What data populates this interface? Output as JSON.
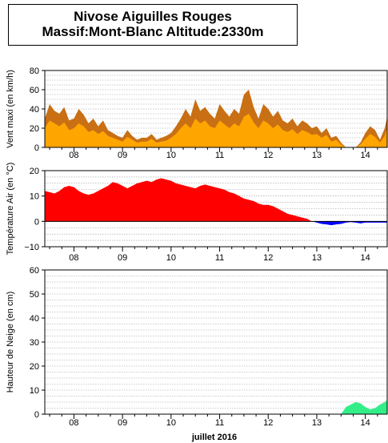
{
  "header": {
    "title_line1": "Nivose Aiguilles Rouges",
    "title_line2": "Massif:Mont-Blanc Altitude:2330m"
  },
  "xaxis": {
    "label": "juillet 2016",
    "day_ticks": [
      "08",
      "09",
      "10",
      "11",
      "12",
      "13",
      "14"
    ],
    "day_positions": [
      8,
      9,
      10,
      11,
      12,
      13,
      14
    ],
    "range": [
      7.4,
      14.45
    ]
  },
  "chart_data": [
    {
      "type": "area",
      "ylabel": "Vent maxi (en km/h)",
      "ylim": [
        0,
        80
      ],
      "yticks": [
        0,
        20,
        40,
        60,
        80
      ],
      "colors": {
        "gust": "#c96f14",
        "mean": "#ffa500"
      },
      "series": [
        {
          "x": [
            7.4,
            7.5,
            7.6,
            7.7,
            7.8,
            7.9,
            8.0,
            8.1,
            8.2,
            8.3,
            8.4,
            8.5,
            8.6,
            8.7,
            8.8,
            8.9,
            9.0,
            9.1,
            9.2,
            9.3,
            9.4,
            9.5,
            9.6,
            9.7,
            9.8,
            9.9,
            10.0,
            10.1,
            10.2,
            10.3,
            10.4,
            10.5,
            10.6,
            10.7,
            10.8,
            10.9,
            11.0,
            11.1,
            11.2,
            11.3,
            11.4,
            11.5,
            11.6,
            11.7,
            11.8,
            11.9,
            12.0,
            12.1,
            12.2,
            12.3,
            12.4,
            12.5,
            12.6,
            12.7,
            12.8,
            12.9,
            13.0,
            13.1,
            13.2,
            13.3,
            13.4,
            13.5,
            13.6,
            13.7,
            13.8,
            13.9,
            14.0,
            14.1,
            14.2,
            14.3,
            14.4,
            14.45
          ],
          "values": [
            30,
            45,
            38,
            35,
            42,
            28,
            30,
            40,
            34,
            25,
            30,
            22,
            28,
            18,
            15,
            12,
            10,
            18,
            12,
            8,
            10,
            10,
            14,
            8,
            10,
            12,
            15,
            22,
            30,
            40,
            32,
            50,
            38,
            42,
            35,
            30,
            45,
            38,
            32,
            40,
            35,
            55,
            60,
            42,
            30,
            45,
            40,
            32,
            38,
            28,
            25,
            30,
            22,
            28,
            25,
            20,
            22,
            15,
            20,
            10,
            12,
            5,
            0,
            0,
            0,
            5,
            15,
            22,
            18,
            8,
            20,
            32
          ]
        },
        {
          "x": [
            7.4,
            7.5,
            7.6,
            7.7,
            7.8,
            7.9,
            8.0,
            8.1,
            8.2,
            8.3,
            8.4,
            8.5,
            8.6,
            8.7,
            8.8,
            8.9,
            9.0,
            9.1,
            9.2,
            9.3,
            9.4,
            9.5,
            9.6,
            9.7,
            9.8,
            9.9,
            10.0,
            10.1,
            10.2,
            10.3,
            10.4,
            10.5,
            10.6,
            10.7,
            10.8,
            10.9,
            11.0,
            11.1,
            11.2,
            11.3,
            11.4,
            11.5,
            11.6,
            11.7,
            11.8,
            11.9,
            12.0,
            12.1,
            12.2,
            12.3,
            12.4,
            12.5,
            12.6,
            12.7,
            12.8,
            12.9,
            13.0,
            13.1,
            13.2,
            13.3,
            13.4,
            13.5,
            13.6,
            13.7,
            13.8,
            13.9,
            14.0,
            14.1,
            14.2,
            14.3,
            14.4,
            14.45
          ],
          "values": [
            20,
            28,
            25,
            22,
            26,
            18,
            20,
            25,
            22,
            16,
            18,
            14,
            17,
            12,
            10,
            8,
            6,
            11,
            8,
            5,
            6,
            6,
            9,
            5,
            6,
            7,
            10,
            14,
            20,
            25,
            20,
            30,
            25,
            28,
            22,
            20,
            28,
            24,
            20,
            25,
            22,
            32,
            35,
            26,
            20,
            28,
            25,
            20,
            24,
            18,
            16,
            19,
            14,
            18,
            16,
            13,
            14,
            10,
            13,
            6,
            8,
            3,
            0,
            0,
            0,
            3,
            9,
            14,
            11,
            5,
            12,
            20
          ]
        }
      ]
    },
    {
      "type": "area",
      "ylabel": "Température Air (en °C)",
      "ylim": [
        -10,
        20
      ],
      "yticks": [
        -10,
        0,
        10,
        20
      ],
      "colors": {
        "positive": "#ff0000",
        "negative": "#0000ff"
      },
      "series": [
        {
          "x": [
            7.4,
            7.5,
            7.6,
            7.7,
            7.8,
            7.9,
            8.0,
            8.1,
            8.2,
            8.3,
            8.4,
            8.5,
            8.6,
            8.7,
            8.8,
            8.9,
            9.0,
            9.1,
            9.2,
            9.3,
            9.4,
            9.5,
            9.6,
            9.7,
            9.8,
            9.9,
            10.0,
            10.1,
            10.2,
            10.3,
            10.4,
            10.5,
            10.6,
            10.7,
            10.8,
            10.9,
            11.0,
            11.1,
            11.2,
            11.3,
            11.4,
            11.5,
            11.6,
            11.7,
            11.8,
            11.9,
            12.0,
            12.1,
            12.2,
            12.3,
            12.4,
            12.5,
            12.6,
            12.7,
            12.8,
            12.9,
            13.0,
            13.1,
            13.2,
            13.3,
            13.4,
            13.5,
            13.6,
            13.7,
            13.8,
            13.9,
            14.0,
            14.1,
            14.2,
            14.3,
            14.4,
            14.45
          ],
          "values": [
            12,
            11.5,
            11,
            12,
            13.5,
            14,
            13.5,
            12,
            11,
            10.5,
            11,
            12,
            13,
            14,
            15.5,
            15,
            14,
            13,
            14,
            15,
            15.5,
            16,
            15.5,
            16.5,
            17,
            16.5,
            16,
            15,
            14.5,
            14,
            13.5,
            13,
            14,
            14.5,
            14,
            13.5,
            13,
            12.5,
            11.5,
            11,
            10,
            9,
            8.5,
            8,
            7,
            6.5,
            6.5,
            6,
            5,
            4,
            3,
            2.5,
            2,
            1.5,
            1,
            0,
            -0.5,
            -1,
            -1.2,
            -1.5,
            -1.2,
            -1,
            -0.5,
            -0.3,
            -0.5,
            -0.8,
            -0.5,
            -0.5,
            -0.5,
            -0.5,
            -0.5,
            -0.5
          ]
        }
      ]
    },
    {
      "type": "area",
      "ylabel": "Hauteur de Neige (en cm)",
      "ylim": [
        0,
        60
      ],
      "yticks": [
        0,
        10,
        20,
        30,
        40,
        50,
        60
      ],
      "colors": {
        "fill": "#33ee88"
      },
      "series": [
        {
          "x": [
            7.4,
            8.0,
            9.0,
            10.0,
            11.0,
            12.0,
            13.0,
            13.5,
            13.6,
            13.7,
            13.8,
            13.9,
            14.0,
            14.1,
            14.2,
            14.3,
            14.4,
            14.45
          ],
          "values": [
            0,
            0,
            0,
            0,
            0,
            0,
            0,
            0,
            3,
            4,
            5,
            4.5,
            3,
            2,
            2.5,
            4,
            5,
            6
          ]
        }
      ]
    }
  ]
}
